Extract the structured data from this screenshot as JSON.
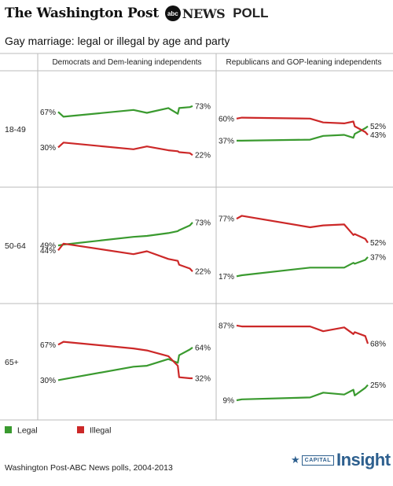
{
  "masthead": {
    "newspaper": "The Washington Post",
    "network_badge": "abc",
    "network": "NEWS",
    "poll": "POLL"
  },
  "headline": "Gay marriage: legal or illegal by age and party",
  "footer": {
    "source": "Washington Post-ABC News polls, 2004-2013",
    "logo_small": "CAPITAL",
    "logo_big": "Insight",
    "logo_icon": "star-icon"
  },
  "colors": {
    "legal": "#3a9a2f",
    "illegal": "#cc2828",
    "rule": "#bbbbbb"
  },
  "chart_data": {
    "type": "line",
    "legend": [
      {
        "name": "Legal",
        "color": "#3a9a2f"
      },
      {
        "name": "Illegal",
        "color": "#cc2828"
      }
    ],
    "columns": [
      "Democrats and Dem-leaning independents",
      "Republicans and GOP-leaning independents"
    ],
    "rows": [
      "18-49",
      "50-64",
      "65+"
    ],
    "ylim": [
      0,
      100
    ],
    "panels": [
      {
        "row": "18-49",
        "column": "Democrats and Dem-leaning independents",
        "series": [
          {
            "name": "Legal",
            "x": [
              0,
              0.04,
              0.56,
              0.66,
              0.82,
              0.89,
              0.9,
              0.98,
              1.0
            ],
            "y": [
              67,
              62,
              69,
              66,
              71,
              65,
              71,
              72,
              73
            ],
            "start_label": "67%",
            "end_label": "73%"
          },
          {
            "name": "Illegal",
            "x": [
              0,
              0.04,
              0.56,
              0.66,
              0.82,
              0.89,
              0.9,
              0.98,
              1.0
            ],
            "y": [
              30,
              35,
              28,
              31,
              27,
              26,
              25,
              24,
              22
            ],
            "start_label": "30%",
            "end_label": "22%"
          }
        ]
      },
      {
        "row": "18-49",
        "column": "Republicans and GOP-leaning independents",
        "series": [
          {
            "name": "Legal",
            "x": [
              0,
              0.04,
              0.56,
              0.66,
              0.82,
              0.89,
              0.9,
              0.98,
              1.0
            ],
            "y": [
              37,
              37,
              38,
              42,
              43,
              40,
              44,
              50,
              52
            ],
            "start_label": "37%",
            "end_label": "52%"
          },
          {
            "name": "Illegal",
            "x": [
              0,
              0.04,
              0.56,
              0.66,
              0.82,
              0.89,
              0.9,
              0.98,
              1.0
            ],
            "y": [
              60,
              61,
              60,
              56,
              55,
              57,
              52,
              46,
              43
            ],
            "start_label": "60%",
            "end_label": "43%"
          }
        ]
      },
      {
        "row": "50-64",
        "column": "Democrats and Dem-leaning independents",
        "series": [
          {
            "name": "Legal",
            "x": [
              0,
              0.04,
              0.56,
              0.66,
              0.82,
              0.89,
              0.9,
              0.98,
              1.0
            ],
            "y": [
              49,
              50,
              58,
              59,
              62,
              64,
              65,
              70,
              73
            ],
            "start_label": "49%",
            "end_label": "73%"
          },
          {
            "name": "Illegal",
            "x": [
              0,
              0.04,
              0.56,
              0.66,
              0.82,
              0.89,
              0.9,
              0.98,
              1.0
            ],
            "y": [
              44,
              51,
              40,
              43,
              35,
              33,
              29,
              25,
              22
            ],
            "start_label": "44%",
            "end_label": "22%"
          }
        ]
      },
      {
        "row": "50-64",
        "column": "Republicans and GOP-leaning independents",
        "series": [
          {
            "name": "Legal",
            "x": [
              0,
              0.04,
              0.56,
              0.66,
              0.82,
              0.89,
              0.9,
              0.98,
              1.0
            ],
            "y": [
              17,
              18,
              26,
              26,
              26,
              31,
              30,
              34,
              37
            ],
            "start_label": "17%",
            "end_label": "37%"
          },
          {
            "name": "Illegal",
            "x": [
              0,
              0.04,
              0.56,
              0.66,
              0.82,
              0.89,
              0.9,
              0.98,
              1.0
            ],
            "y": [
              77,
              80,
              68,
              70,
              71,
              60,
              61,
              56,
              52
            ],
            "start_label": "77%",
            "end_label": "52%"
          }
        ]
      },
      {
        "row": "65+",
        "column": "Democrats and Dem-leaning independents",
        "series": [
          {
            "name": "Legal",
            "x": [
              0,
              0.04,
              0.56,
              0.66,
              0.82,
              0.89,
              0.9,
              0.98,
              1.0
            ],
            "y": [
              30,
              31,
              44,
              45,
              52,
              48,
              56,
              62,
              64
            ],
            "start_label": "30%",
            "end_label": "64%"
          },
          {
            "name": "Illegal",
            "x": [
              0,
              0.04,
              0.56,
              0.66,
              0.82,
              0.89,
              0.9,
              0.98,
              1.0
            ],
            "y": [
              67,
              70,
              63,
              61,
              55,
              45,
              33,
              32,
              32
            ],
            "start_label": "67%",
            "end_label": "32%"
          }
        ]
      },
      {
        "row": "65+",
        "column": "Republicans and GOP-leaning independents",
        "series": [
          {
            "name": "Legal",
            "x": [
              0,
              0.04,
              0.56,
              0.66,
              0.82,
              0.89,
              0.9,
              0.98,
              1.0
            ],
            "y": [
              9,
              10,
              12,
              17,
              15,
              20,
              14,
              22,
              25
            ],
            "start_label": "9%",
            "end_label": "25%"
          },
          {
            "name": "Illegal",
            "x": [
              0,
              0.04,
              0.56,
              0.66,
              0.82,
              0.89,
              0.9,
              0.98,
              1.0
            ],
            "y": [
              87,
              86,
              86,
              81,
              85,
              78,
              80,
              76,
              68
            ],
            "start_label": "87%",
            "end_label": "68%"
          }
        ]
      }
    ]
  }
}
